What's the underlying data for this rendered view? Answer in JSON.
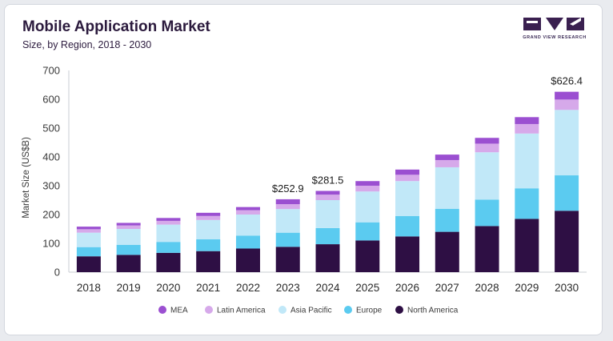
{
  "title": "Mobile Application Market",
  "subtitle": "Size, by Region, 2018 - 2030",
  "logo": {
    "text": "GRAND VIEW RESEARCH"
  },
  "colors": {
    "North America": "#2e0f44",
    "Europe": "#5bcbf0",
    "Asia Pacific": "#c1e8f8",
    "Latin America": "#d6a9ea",
    "MEA": "#9b4fd1"
  },
  "chart_data": {
    "type": "bar",
    "stacked": true,
    "ylabel": "Market Size (US$B)",
    "ylim": [
      0,
      700
    ],
    "yticks": [
      0,
      100,
      200,
      300,
      400,
      500,
      600,
      700
    ],
    "grid": false,
    "legend_position": "bottom",
    "categories": [
      "2018",
      "2019",
      "2020",
      "2021",
      "2022",
      "2023",
      "2024",
      "2025",
      "2026",
      "2027",
      "2028",
      "2029",
      "2030"
    ],
    "series": [
      {
        "name": "North America",
        "values": [
          55,
          60,
          67,
          73,
          82,
          88,
          97,
          110,
          124,
          140,
          160,
          185,
          213
        ]
      },
      {
        "name": "Europe",
        "values": [
          32,
          35,
          38,
          41,
          45,
          49,
          56,
          63,
          71,
          80,
          92,
          106,
          123
        ]
      },
      {
        "name": "Asia Pacific",
        "values": [
          50,
          55,
          60,
          67,
          73,
          82,
          97,
          107,
          121,
          144,
          164,
          190,
          227
        ]
      },
      {
        "name": "Latin America",
        "values": [
          12,
          12,
          13,
          14,
          15,
          17,
          19,
          20,
          22,
          25,
          30,
          33,
          36
        ]
      },
      {
        "name": "MEA",
        "values": [
          9,
          9,
          10,
          11,
          11,
          17,
          13,
          16,
          18,
          19,
          20,
          24,
          27
        ]
      }
    ],
    "annotations": [
      {
        "category": "2023",
        "text": "$252.9"
      },
      {
        "category": "2024",
        "text": "$281.5"
      },
      {
        "category": "2030",
        "text": "$626.4"
      }
    ],
    "legend_order": [
      "MEA",
      "Latin America",
      "Asia Pacific",
      "Europe",
      "North America"
    ]
  }
}
